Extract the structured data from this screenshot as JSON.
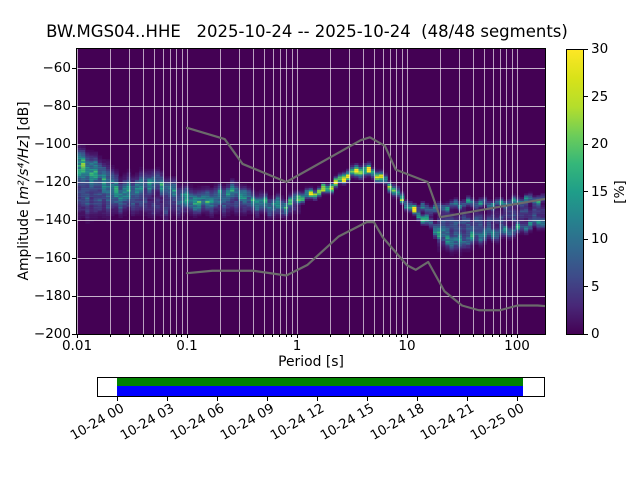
{
  "title": "BW.MGS04..HHE   2025-10-24 -- 2025-10-24  (48/48 segments)",
  "axes": {
    "xlabel": "Period [s]",
    "ylabel_prefix": "Amplitude [",
    "ylabel_math": "m²/s⁴/Hz",
    "ylabel_suffix": "] [dB]",
    "xtick_labels": [
      "0.01",
      "0.1",
      "1",
      "10",
      "100"
    ],
    "ytick_labels": [
      "−60",
      "−80",
      "−100",
      "−120",
      "−140",
      "−160",
      "−180",
      "−200"
    ]
  },
  "colorbar": {
    "label": "[%]",
    "tick_labels": [
      "0",
      "5",
      "10",
      "15",
      "20",
      "25",
      "30"
    ]
  },
  "coverage": {
    "tick_labels": [
      "10-24 00",
      "10-24 03",
      "10-24 06",
      "10-24 09",
      "10-24 12",
      "10-24 15",
      "10-24 18",
      "10-24 21",
      "10-25 00"
    ],
    "green_color": "#008000",
    "blue_color": "#0000ff"
  },
  "chart_data": {
    "type": "heatmap",
    "title": "BW.MGS04..HHE   2025-10-24 -- 2025-10-24  (48/48 segments)",
    "xlabel": "Period [s]",
    "ylabel": "Amplitude [m^2/s^4/Hz] [dB]",
    "xscale": "log",
    "xlim": [
      0.01,
      180
    ],
    "ylim": [
      -200,
      -50
    ],
    "xticks": [
      0.01,
      0.1,
      1,
      10,
      100
    ],
    "yticks": [
      -60,
      -80,
      -100,
      -120,
      -140,
      -160,
      -180,
      -200
    ],
    "grid": true,
    "grid_color": "rgba(255,255,255,0.7)",
    "background_color": "#440154",
    "colorbar": {
      "label": "[%]",
      "ticks": [
        0,
        5,
        10,
        15,
        20,
        25,
        30
      ],
      "range": [
        0,
        30
      ],
      "cmap": "viridis"
    },
    "period_step_octaves": 0.125,
    "db_bin_width": 1,
    "psd_ridges": [
      {
        "name": "main-mode",
        "points": [
          [
            0.01,
            -112,
            17,
            5
          ],
          [
            0.016,
            -118,
            13,
            4.5
          ],
          [
            0.025,
            -124.5,
            12,
            4
          ],
          [
            0.05,
            -120.5,
            14,
            3.2
          ],
          [
            0.08,
            -126,
            12,
            3.2
          ],
          [
            0.13,
            -129.5,
            13,
            3
          ],
          [
            0.2,
            -128,
            13,
            2.8
          ],
          [
            0.28,
            -125,
            15,
            2.6
          ],
          [
            0.4,
            -128.5,
            13,
            2.4
          ],
          [
            0.6,
            -132,
            14,
            2.2
          ],
          [
            0.8,
            -133,
            15,
            2
          ],
          [
            1.0,
            -128.5,
            22,
            1.6
          ],
          [
            1.4,
            -125.5,
            28,
            1.3
          ],
          [
            2.0,
            -122.5,
            30,
            1.3
          ],
          [
            3.0,
            -116.5,
            30,
            1.5
          ],
          [
            4.0,
            -113.7,
            30,
            1.7
          ],
          [
            5.0,
            -114.5,
            28,
            1.5
          ],
          [
            6.3,
            -118.5,
            24,
            1.5
          ],
          [
            8.0,
            -125.5,
            20,
            1.5
          ],
          [
            10.0,
            -132.5,
            20,
            1.4
          ],
          [
            13.0,
            -138.5,
            22,
            1.3
          ],
          [
            16.0,
            -141,
            18,
            1.6
          ],
          [
            21.0,
            -148,
            11,
            2.6
          ],
          [
            28.0,
            -151.5,
            11,
            2.2
          ],
          [
            40.0,
            -150,
            10,
            2.2
          ],
          [
            56.0,
            -147.5,
            11,
            2
          ],
          [
            79.0,
            -145.5,
            12,
            1.8
          ],
          [
            100.0,
            -144.5,
            12,
            1.7
          ],
          [
            141.0,
            -142.5,
            12,
            1.7
          ],
          [
            180.0,
            -141,
            12,
            1.7
          ]
        ]
      },
      {
        "name": "upper-band-long",
        "points": [
          [
            11,
            -134,
            10,
            1.3
          ],
          [
            16,
            -133.5,
            12,
            1.3
          ],
          [
            25,
            -132.5,
            12,
            1.3
          ],
          [
            40,
            -131.5,
            12,
            1.3
          ],
          [
            63,
            -131,
            13,
            1.3
          ],
          [
            100,
            -130.5,
            13,
            1.3
          ],
          [
            180,
            -129.5,
            13,
            1.3
          ]
        ]
      },
      {
        "name": "mid-fill-long",
        "points": [
          [
            18,
            -141,
            5,
            3
          ],
          [
            28,
            -143,
            6,
            3.5
          ],
          [
            45,
            -141,
            6,
            3
          ],
          [
            79,
            -138.5,
            6,
            2.8
          ],
          [
            180,
            -135.5,
            6,
            2.8
          ]
        ]
      },
      {
        "name": "lower-spread-short",
        "points": [
          [
            0.01,
            -128,
            8,
            6
          ],
          [
            0.025,
            -131,
            6,
            3.5
          ],
          [
            0.08,
            -133,
            5,
            3
          ],
          [
            0.25,
            -131.5,
            5,
            2.8
          ],
          [
            0.63,
            -136,
            4,
            2
          ],
          [
            1.1,
            -133,
            3,
            2
          ]
        ]
      },
      {
        "name": "upper-faint-short",
        "points": [
          [
            0.01,
            -107,
            6,
            3
          ],
          [
            0.016,
            -112,
            4,
            3
          ],
          [
            0.022,
            -118,
            2,
            3
          ]
        ]
      },
      {
        "name": "haze-long",
        "points": [
          [
            18,
            -146,
            3,
            6
          ],
          [
            30,
            -147,
            3,
            6
          ],
          [
            50,
            -145,
            2,
            5
          ]
        ]
      }
    ],
    "noise_models": {
      "color": "#6b6b6b",
      "linewidth": 2.2,
      "nlnm": [
        [
          0.1,
          -168.0
        ],
        [
          0.17,
          -166.7
        ],
        [
          0.4,
          -166.7
        ],
        [
          0.8,
          -169.2
        ],
        [
          1.24,
          -163.7
        ],
        [
          2.4,
          -148.6
        ],
        [
          4.3,
          -141.1
        ],
        [
          5.0,
          -141.1
        ],
        [
          6.0,
          -149.0
        ],
        [
          10.0,
          -163.8
        ],
        [
          12.0,
          -166.2
        ],
        [
          15.6,
          -162.1
        ],
        [
          21.9,
          -177.5
        ],
        [
          31.6,
          -185.0
        ],
        [
          45.0,
          -187.5
        ],
        [
          70.0,
          -187.5
        ],
        [
          101.0,
          -185.0
        ],
        [
          154.0,
          -185.0
        ],
        [
          180.0,
          -185.3
        ]
      ],
      "nhnm": [
        [
          0.1,
          -91.5
        ],
        [
          0.22,
          -97.4
        ],
        [
          0.32,
          -110.5
        ],
        [
          0.8,
          -120.0
        ],
        [
          3.8,
          -98.0
        ],
        [
          4.6,
          -96.5
        ],
        [
          6.3,
          -101.0
        ],
        [
          7.9,
          -113.5
        ],
        [
          15.4,
          -120.0
        ],
        [
          20.0,
          -138.5
        ],
        [
          180.0,
          -128.9
        ]
      ]
    },
    "viridis_stops": [
      [
        0.0,
        68,
        1,
        84
      ],
      [
        0.1,
        72,
        40,
        120
      ],
      [
        0.2,
        62,
        74,
        137
      ],
      [
        0.3,
        49,
        104,
        142
      ],
      [
        0.4,
        38,
        130,
        142
      ],
      [
        0.5,
        31,
        158,
        137
      ],
      [
        0.6,
        53,
        183,
        121
      ],
      [
        0.7,
        109,
        205,
        89
      ],
      [
        0.8,
        180,
        222,
        44
      ],
      [
        0.9,
        216,
        226,
        25
      ],
      [
        1.0,
        253,
        231,
        37
      ]
    ],
    "coverage_timeline": {
      "start_label": "10-24 00",
      "end_label": "10-25 00",
      "tick_interval_hours": 3,
      "data_start_frac": 0.045,
      "data_end_frac": 0.951
    }
  }
}
